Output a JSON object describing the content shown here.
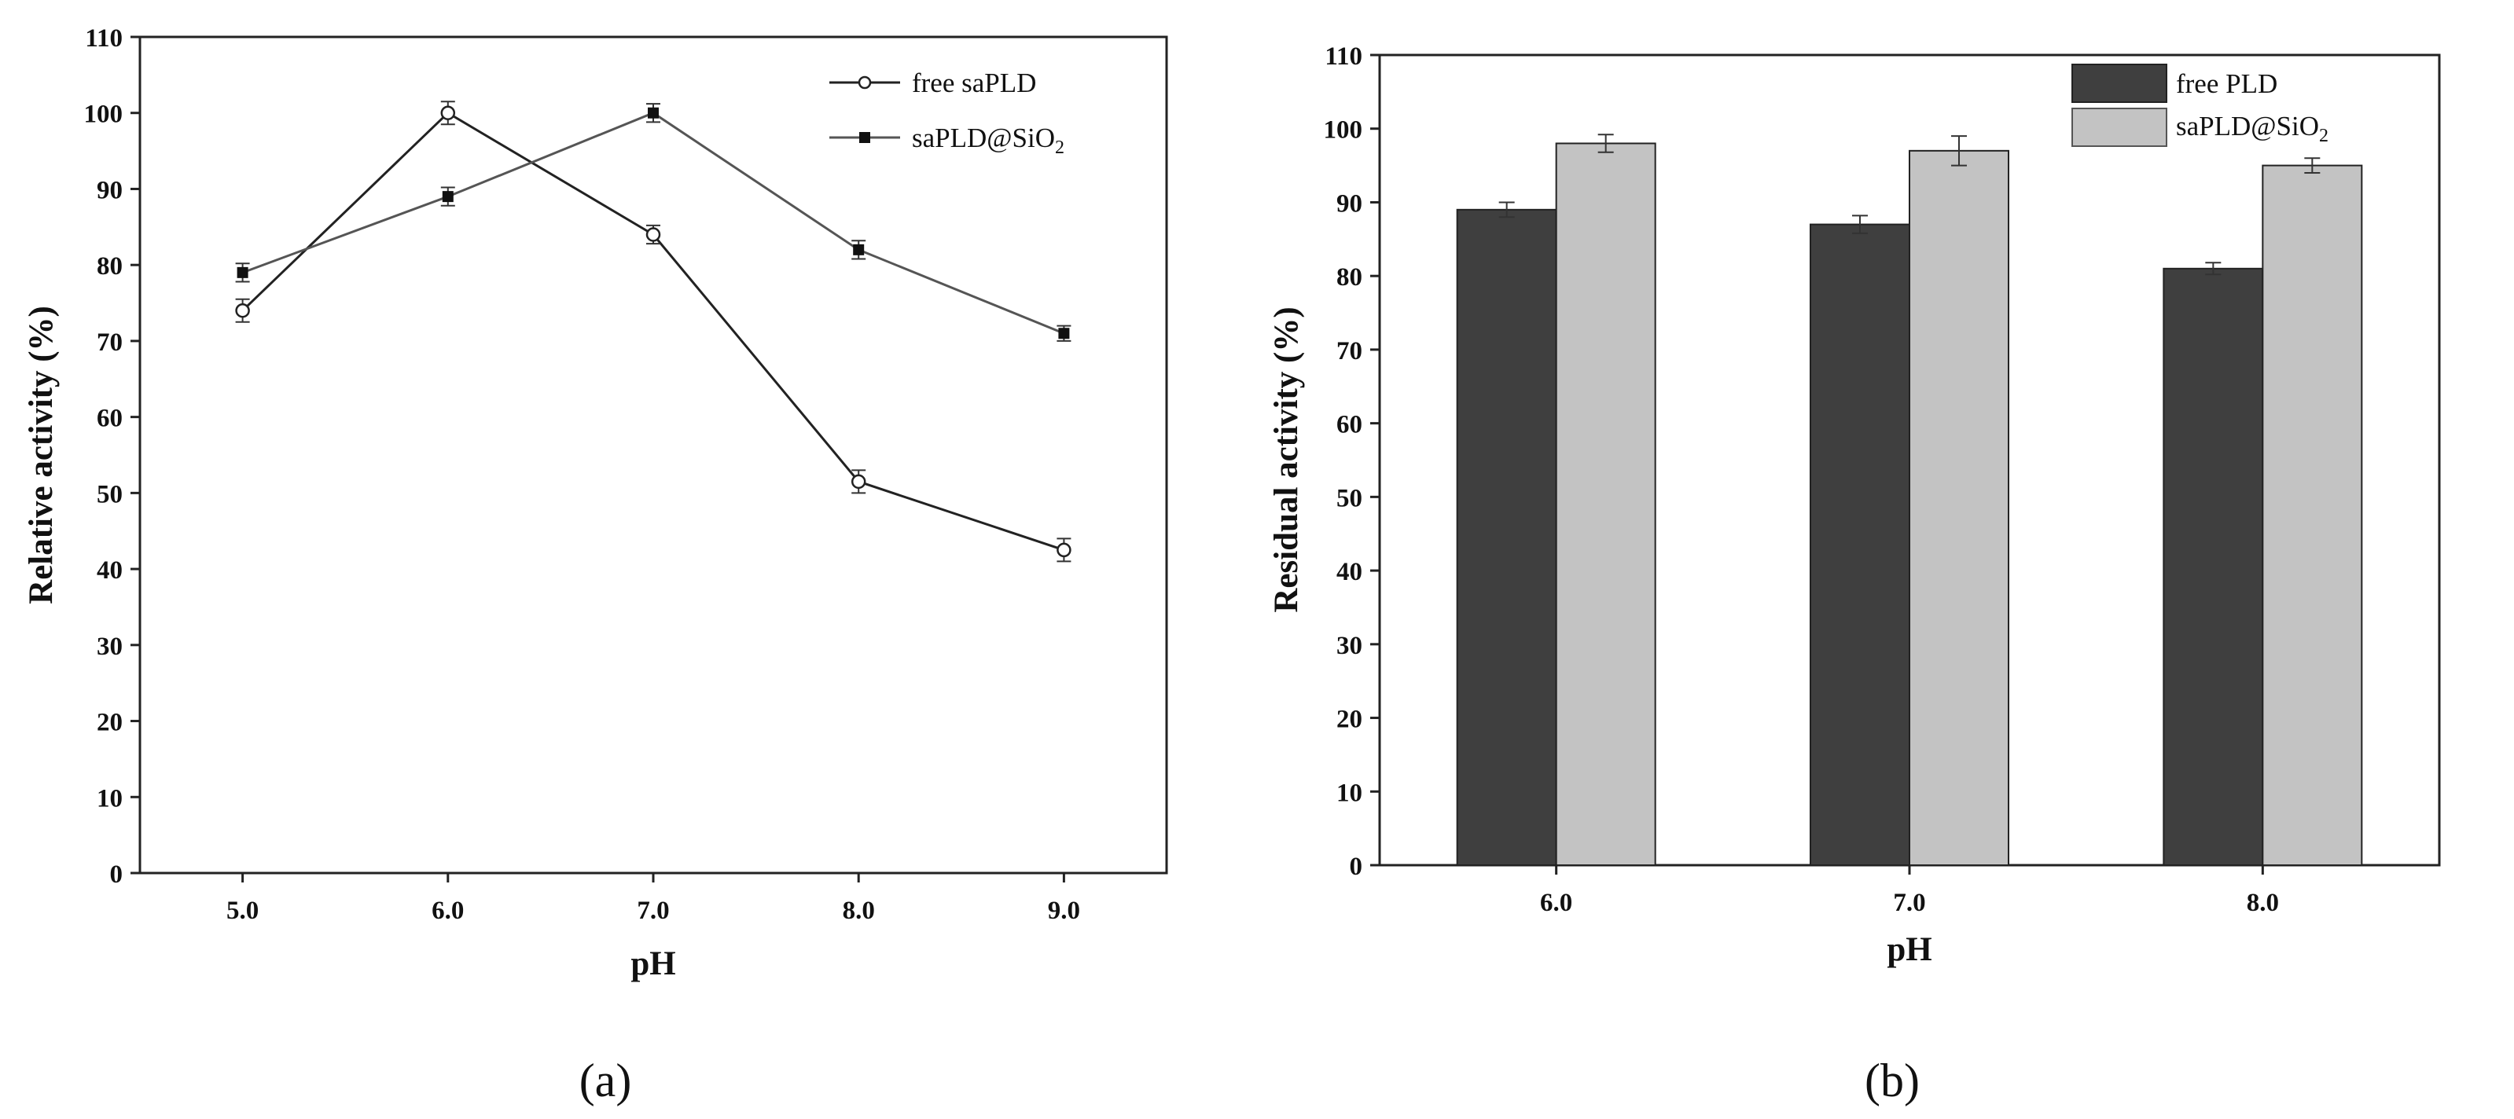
{
  "chart_data": [
    {
      "type": "line",
      "panel_label": "(a)",
      "xlabel": "pH",
      "ylabel": "Relative activity (%)",
      "x": [
        5.0,
        6.0,
        7.0,
        8.0,
        9.0
      ],
      "x_tick_labels": [
        "5.0",
        "6.0",
        "7.0",
        "8.0",
        "9.0"
      ],
      "xlim": [
        4.5,
        9.5
      ],
      "ylim": [
        0,
        110
      ],
      "y_ticks": [
        0,
        10,
        20,
        30,
        40,
        50,
        60,
        70,
        80,
        90,
        100,
        110
      ],
      "legend_position": "top-right",
      "series": [
        {
          "name": "free saPLD",
          "marker": "open-circle",
          "color": "#222222",
          "values": [
            74,
            100,
            84,
            51.5,
            42.5
          ],
          "errors": [
            1.5,
            1.5,
            1.2,
            1.5,
            1.5
          ]
        },
        {
          "name": "saPLD@SiO",
          "name_sub": "2",
          "marker": "filled-square",
          "color": "#555555",
          "values": [
            79,
            89,
            100,
            82,
            71
          ],
          "errors": [
            1.2,
            1.2,
            1.2,
            1.2,
            1.0
          ]
        }
      ]
    },
    {
      "type": "bar",
      "panel_label": "(b)",
      "xlabel": "pH",
      "ylabel": "Residual activity (%)",
      "categories": [
        "6.0",
        "7.0",
        "8.0"
      ],
      "ylim": [
        0,
        110
      ],
      "y_ticks": [
        0,
        10,
        20,
        30,
        40,
        50,
        60,
        70,
        80,
        90,
        100,
        110
      ],
      "legend_position": "top-center",
      "series": [
        {
          "name": "free PLD",
          "color": "#3f3f3f",
          "values": [
            89,
            87,
            81
          ],
          "errors": [
            1.0,
            1.2,
            0.8
          ]
        },
        {
          "name": "saPLD@SiO",
          "name_sub": "2",
          "color": "#c3c3c3",
          "values": [
            98,
            97,
            95
          ],
          "errors": [
            1.2,
            2.0,
            1.0
          ]
        }
      ]
    }
  ]
}
